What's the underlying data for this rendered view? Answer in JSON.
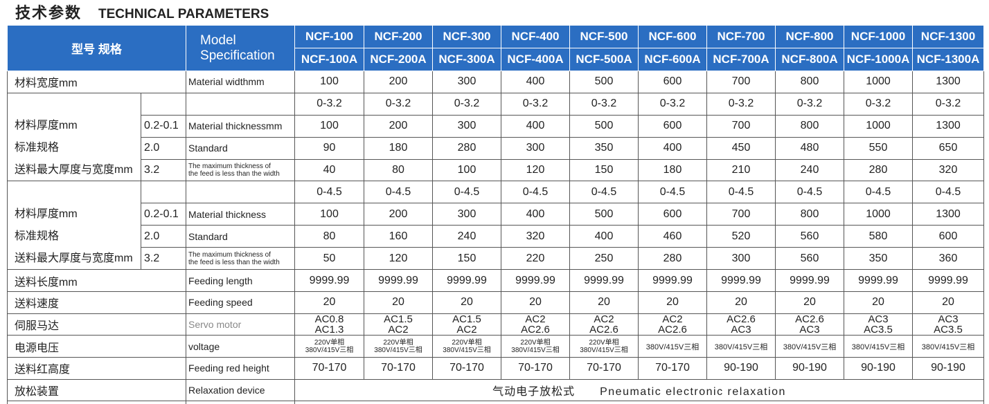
{
  "header": {
    "title_cn": "技术参数",
    "title_en": "TECHNICAL PARAMETERS"
  },
  "table": {
    "corner_cn": "型号 规格",
    "corner_en": [
      "Model",
      "Specification"
    ],
    "models": [
      "NCF-100",
      "NCF-200",
      "NCF-300",
      "NCF-400",
      "NCF-500",
      "NCF-600",
      "NCF-700",
      "NCF-800",
      "NCF-1000",
      "NCF-1300"
    ],
    "models_a": [
      "NCF-100A",
      "NCF-200A",
      "NCF-300A",
      "NCF-400A",
      "NCF-500A",
      "NCF-600A",
      "NCF-700A",
      "NCF-800A",
      "NCF-1000A",
      "NCF-1300A"
    ],
    "rows": [
      {
        "cn": "材料宽度mm",
        "en": "Material widthmm",
        "values": [
          100,
          200,
          300,
          400,
          500,
          600,
          700,
          800,
          1000,
          1300
        ]
      },
      {
        "cn_lines": [
          "材料厚度mm",
          "标准规格",
          "送料最大厚度与宽度mm"
        ],
        "range": [
          "0-3.2",
          "0-3.2",
          "0-3.2",
          "0-3.2",
          "0-3.2",
          "0-3.2",
          "0-3.2",
          "0-3.2",
          "0-3.2",
          "0-3.2"
        ],
        "sub_rows": [
          {
            "sub": "0.2-0.1",
            "en": "Material thicknessmm",
            "values": [
              100,
              200,
              300,
              400,
              500,
              600,
              700,
              800,
              1000,
              1300
            ]
          },
          {
            "sub": "2.0",
            "en": "Standard",
            "values": [
              90,
              180,
              280,
              300,
              350,
              400,
              450,
              480,
              550,
              650
            ]
          },
          {
            "sub": "3.2",
            "en": [
              "The maximum thickness of",
              "the feed is less than the width"
            ],
            "values": [
              40,
              80,
              100,
              120,
              150,
              180,
              210,
              240,
              280,
              320
            ]
          }
        ]
      },
      {
        "cn_lines": [
          "材料厚度mm",
          "标准规格",
          "送料最大厚度与宽度mm"
        ],
        "range": [
          "0-4.5",
          "0-4.5",
          "0-4.5",
          "0-4.5",
          "0-4.5",
          "0-4.5",
          "0-4.5",
          "0-4.5",
          "0-4.5",
          "0-4.5"
        ],
        "sub_rows": [
          {
            "sub": "0.2-0.1",
            "en": "Material thickness",
            "values": [
              100,
              200,
              300,
              400,
              500,
              600,
              700,
              800,
              1000,
              1300
            ]
          },
          {
            "sub": "2.0",
            "en": "Standard",
            "values": [
              80,
              160,
              240,
              320,
              400,
              460,
              520,
              560,
              580,
              600
            ]
          },
          {
            "sub": "3.2",
            "en": [
              "The maximum thickness of",
              "the feed is less than the width"
            ],
            "values": [
              50,
              120,
              150,
              220,
              250,
              280,
              300,
              560,
              350,
              360
            ]
          }
        ]
      },
      {
        "cn": "送料长度mm",
        "en": "Feeding length",
        "values": [
          9999.99,
          9999.99,
          9999.99,
          9999.99,
          9999.99,
          9999.99,
          9999.99,
          9999.99,
          9999.99,
          9999.99
        ]
      },
      {
        "cn": "送料速度",
        "en": "Feeding speed",
        "values": [
          20,
          20,
          20,
          20,
          20,
          20,
          20,
          20,
          20,
          20
        ]
      },
      {
        "cn": "伺服马达",
        "en": "Servo motor",
        "values": [
          [
            "AC0.8",
            "AC1.3"
          ],
          [
            "AC1.5",
            "AC2"
          ],
          [
            "AC1.5",
            "AC2"
          ],
          [
            "AC2",
            "AC2.6"
          ],
          [
            "AC2",
            "AC2.6"
          ],
          [
            "AC2",
            "AC2.6"
          ],
          [
            "AC2.6",
            "AC3"
          ],
          [
            "AC2.6",
            "AC3"
          ],
          [
            "AC3",
            "AC3.5"
          ],
          [
            "AC3",
            "AC3.5"
          ]
        ]
      },
      {
        "cn": "电源电压",
        "en": "voltage",
        "values": [
          [
            "220V单相",
            "380V/415V三相"
          ],
          [
            "220V单相",
            "380V/415V三相"
          ],
          [
            "220V单相",
            "380V/415V三相"
          ],
          [
            "220V单相",
            "380V/415V三相"
          ],
          [
            "220V单相",
            "380V/415V三相"
          ],
          "380V/415V三相",
          "380V/415V三相",
          "380V/415V三相",
          "380V/415V三相",
          "380V/415V三相"
        ]
      },
      {
        "cn": "送料红高度",
        "en": "Feeding red height",
        "values": [
          "70-170",
          "70-170",
          "70-170",
          "70-170",
          "70-170",
          "70-170",
          "90-190",
          "90-190",
          "90-190",
          "90-190"
        ]
      },
      {
        "cn": "放松装置",
        "en": "Relaxation device",
        "span_values": [
          "气动电子放松式",
          "Pneumatic electronic relaxation"
        ]
      }
    ]
  }
}
